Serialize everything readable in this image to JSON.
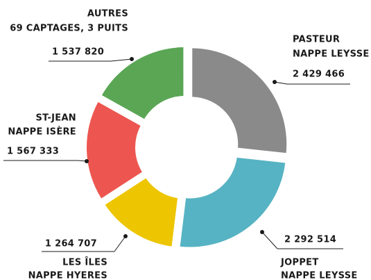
{
  "chart_data": {
    "type": "donut",
    "categories": [
      "PASTEUR",
      "JOPPET",
      "LES ÎLES",
      "ST-JEAN",
      "AUTRES"
    ],
    "subtitles": [
      "NAPPE LEYSSE",
      "NAPPE LEYSSE",
      "NAPPE HYERES",
      "NAPPE ISÈRE",
      "69 CAPTAGES, 3 PUITS"
    ],
    "values": [
      2429466,
      2292514,
      1264707,
      1567333,
      1537820
    ],
    "value_labels": [
      "2 429 466",
      "2 292 514",
      "1 264 707",
      "1 567 333",
      "1 537 820"
    ],
    "colors": [
      "#8a8a8a",
      "#56b3c3",
      "#edc500",
      "#ed5650",
      "#5aa655"
    ]
  }
}
